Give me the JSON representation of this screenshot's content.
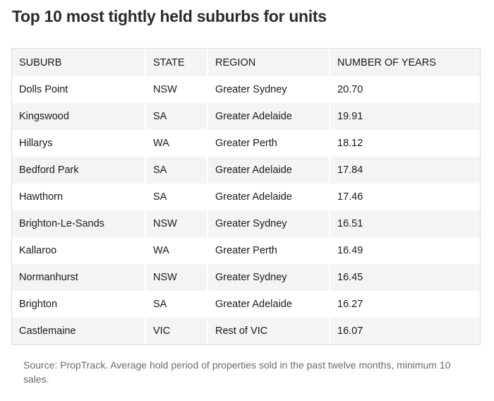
{
  "chart_data": {
    "type": "table",
    "title": "Top 10 most tightly held suburbs for units",
    "columns": [
      "SUBURB",
      "STATE",
      "REGION",
      "NUMBER OF YEARS"
    ],
    "rows": [
      [
        "Dolls Point",
        "NSW",
        "Greater Sydney",
        "20.70"
      ],
      [
        "Kingswood",
        "SA",
        "Greater Adelaide",
        "19.91"
      ],
      [
        "Hillarys",
        "WA",
        "Greater Perth",
        "18.12"
      ],
      [
        "Bedford Park",
        "SA",
        "Greater Adelaide",
        "17.84"
      ],
      [
        "Hawthorn",
        "SA",
        "Greater Adelaide",
        "17.46"
      ],
      [
        "Brighton-Le-Sands",
        "NSW",
        "Greater Sydney",
        "16.51"
      ],
      [
        "Kallaroo",
        "WA",
        "Greater Perth",
        "16.49"
      ],
      [
        "Normanhurst",
        "NSW",
        "Greater Sydney",
        "16.45"
      ],
      [
        "Brighton",
        "SA",
        "Greater Adelaide",
        "16.27"
      ],
      [
        "Castlemaine",
        "VIC",
        "Rest of VIC",
        "16.07"
      ]
    ],
    "source": "Source: PropTrack. Average hold period of properties sold in the past twelve months, minimum 10 sales."
  }
}
